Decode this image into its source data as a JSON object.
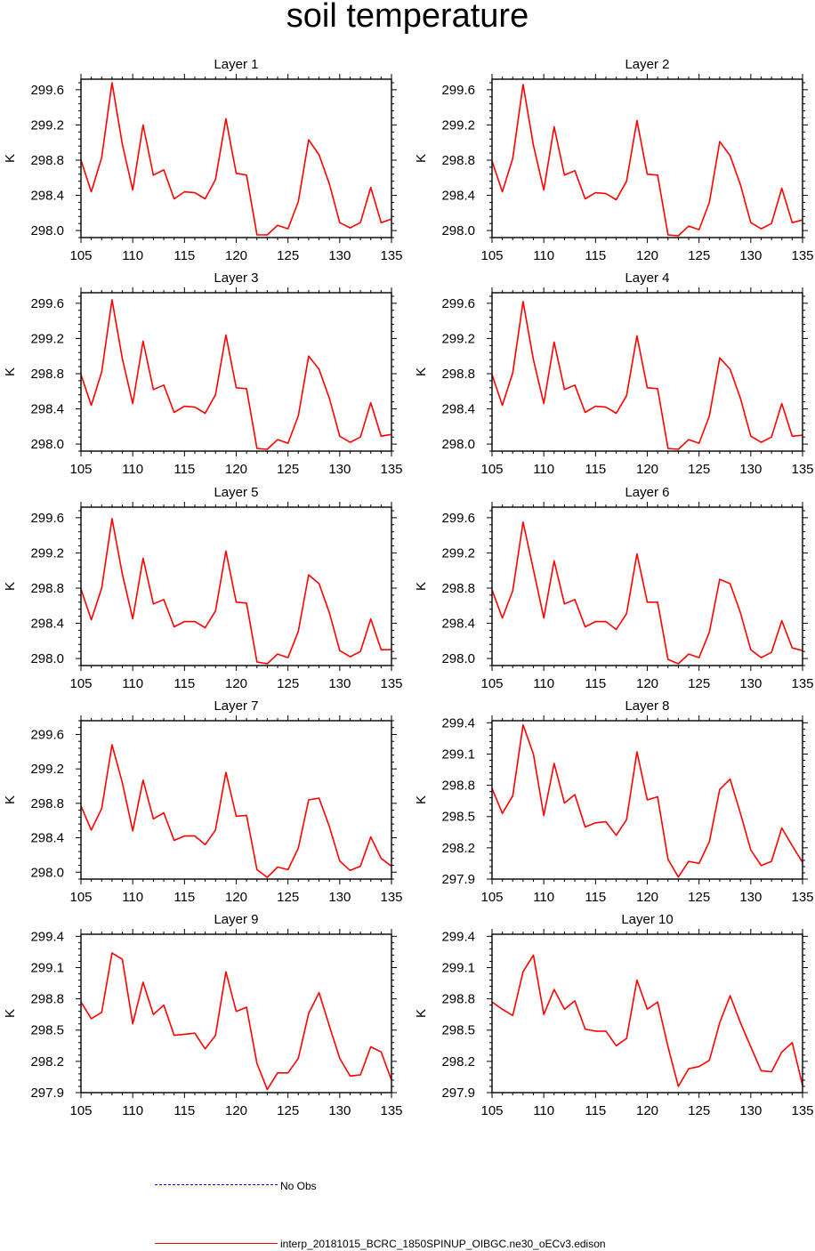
{
  "title": "soil temperature",
  "colors": {
    "model": "#ff0000",
    "obs": "#0000ff",
    "axis": "#000000"
  },
  "legend": {
    "obs_label": "No Obs",
    "model_label": "interp_20181015_BCRC_1850SPINUP_OIBGC.ne30_oECv3.edison"
  },
  "chart_data": [
    {
      "type": "line",
      "title": "Layer 1",
      "ylabel": "K",
      "xlim": [
        105,
        135
      ],
      "ylim": [
        297.92,
        299.72
      ],
      "xticks": [
        105,
        110,
        115,
        120,
        125,
        130,
        135
      ],
      "yticks": [
        "298.0",
        "298.4",
        "298.8",
        "299.2",
        "299.6"
      ],
      "x": [
        105,
        106,
        107,
        108,
        109,
        110,
        111,
        112,
        113,
        114,
        115,
        116,
        117,
        118,
        119,
        120,
        121,
        122,
        123,
        124,
        125,
        126,
        127,
        128,
        129,
        130,
        131,
        132,
        133,
        134,
        135
      ],
      "series": [
        {
          "name": "interp_20181015_BCRC_1850SPINUP_OIBGC.ne30_oECv3.edison",
          "values": [
            298.8,
            298.44,
            298.83,
            299.68,
            298.98,
            298.46,
            299.2,
            298.63,
            298.69,
            298.36,
            298.44,
            298.43,
            298.36,
            298.58,
            299.27,
            298.65,
            298.63,
            297.95,
            297.95,
            298.06,
            298.02,
            298.33,
            299.03,
            298.86,
            298.53,
            298.09,
            298.03,
            298.09,
            298.49,
            298.09,
            298.13
          ]
        }
      ]
    },
    {
      "type": "line",
      "title": "Layer 2",
      "ylabel": "K",
      "xlim": [
        105,
        135
      ],
      "ylim": [
        297.92,
        299.72
      ],
      "xticks": [
        105,
        110,
        115,
        120,
        125,
        130,
        135
      ],
      "yticks": [
        "298.0",
        "298.4",
        "298.8",
        "299.2",
        "299.6"
      ],
      "x": [
        105,
        106,
        107,
        108,
        109,
        110,
        111,
        112,
        113,
        114,
        115,
        116,
        117,
        118,
        119,
        120,
        121,
        122,
        123,
        124,
        125,
        126,
        127,
        128,
        129,
        130,
        131,
        132,
        133,
        134,
        135
      ],
      "series": [
        {
          "name": "interp_20181015_BCRC_1850SPINUP_OIBGC.ne30_oECv3.edison",
          "values": [
            298.79,
            298.44,
            298.82,
            299.66,
            298.97,
            298.46,
            299.18,
            298.63,
            298.68,
            298.36,
            298.43,
            298.42,
            298.35,
            298.56,
            299.25,
            298.64,
            298.63,
            297.95,
            297.94,
            298.05,
            298.01,
            298.32,
            299.01,
            298.85,
            298.52,
            298.09,
            298.02,
            298.08,
            298.48,
            298.09,
            298.12
          ]
        }
      ]
    },
    {
      "type": "line",
      "title": "Layer 3",
      "ylabel": "K",
      "xlim": [
        105,
        135
      ],
      "ylim": [
        297.92,
        299.72
      ],
      "xticks": [
        105,
        110,
        115,
        120,
        125,
        130,
        135
      ],
      "yticks": [
        "298.0",
        "298.4",
        "298.8",
        "299.2",
        "299.6"
      ],
      "x": [
        105,
        106,
        107,
        108,
        109,
        110,
        111,
        112,
        113,
        114,
        115,
        116,
        117,
        118,
        119,
        120,
        121,
        122,
        123,
        124,
        125,
        126,
        127,
        128,
        129,
        130,
        131,
        132,
        133,
        134,
        135
      ],
      "series": [
        {
          "name": "interp_20181015_BCRC_1850SPINUP_OIBGC.ne30_oECv3.edison",
          "values": [
            298.79,
            298.44,
            298.82,
            299.64,
            298.97,
            298.46,
            299.17,
            298.62,
            298.67,
            298.36,
            298.43,
            298.42,
            298.35,
            298.56,
            299.24,
            298.64,
            298.63,
            297.95,
            297.94,
            298.05,
            298.01,
            298.32,
            299.0,
            298.85,
            298.52,
            298.09,
            298.02,
            298.08,
            298.47,
            298.09,
            298.11
          ]
        }
      ]
    },
    {
      "type": "line",
      "title": "Layer 4",
      "ylabel": "K",
      "xlim": [
        105,
        135
      ],
      "ylim": [
        297.92,
        299.72
      ],
      "xticks": [
        105,
        110,
        115,
        120,
        125,
        130,
        135
      ],
      "yticks": [
        "298.0",
        "298.4",
        "298.8",
        "299.2",
        "299.6"
      ],
      "x": [
        105,
        106,
        107,
        108,
        109,
        110,
        111,
        112,
        113,
        114,
        115,
        116,
        117,
        118,
        119,
        120,
        121,
        122,
        123,
        124,
        125,
        126,
        127,
        128,
        129,
        130,
        131,
        132,
        133,
        134,
        135
      ],
      "series": [
        {
          "name": "interp_20181015_BCRC_1850SPINUP_OIBGC.ne30_oECv3.edison",
          "values": [
            298.79,
            298.44,
            298.81,
            299.62,
            298.96,
            298.46,
            299.16,
            298.62,
            298.67,
            298.36,
            298.43,
            298.42,
            298.35,
            298.55,
            299.23,
            298.64,
            298.63,
            297.95,
            297.94,
            298.05,
            298.01,
            298.32,
            298.98,
            298.85,
            298.52,
            298.09,
            298.02,
            298.08,
            298.46,
            298.09,
            298.1
          ]
        }
      ]
    },
    {
      "type": "line",
      "title": "Layer 5",
      "ylabel": "K",
      "xlim": [
        105,
        135
      ],
      "ylim": [
        297.92,
        299.72
      ],
      "xticks": [
        105,
        110,
        115,
        120,
        125,
        130,
        135
      ],
      "yticks": [
        "298.0",
        "298.4",
        "298.8",
        "299.2",
        "299.6"
      ],
      "x": [
        105,
        106,
        107,
        108,
        109,
        110,
        111,
        112,
        113,
        114,
        115,
        116,
        117,
        118,
        119,
        120,
        121,
        122,
        123,
        124,
        125,
        126,
        127,
        128,
        129,
        130,
        131,
        132,
        133,
        134,
        135
      ],
      "series": [
        {
          "name": "interp_20181015_BCRC_1850SPINUP_OIBGC.ne30_oECv3.edison",
          "values": [
            298.79,
            298.44,
            298.8,
            299.59,
            298.96,
            298.45,
            299.14,
            298.62,
            298.67,
            298.36,
            298.42,
            298.42,
            298.35,
            298.54,
            299.22,
            298.64,
            298.63,
            297.96,
            297.94,
            298.05,
            298.01,
            298.31,
            298.95,
            298.85,
            298.52,
            298.09,
            298.02,
            298.08,
            298.45,
            298.1,
            298.1
          ]
        }
      ]
    },
    {
      "type": "line",
      "title": "Layer 6",
      "ylabel": "K",
      "xlim": [
        105,
        135
      ],
      "ylim": [
        297.92,
        299.72
      ],
      "xticks": [
        105,
        110,
        115,
        120,
        125,
        130,
        135
      ],
      "yticks": [
        "298.0",
        "298.4",
        "298.8",
        "299.2",
        "299.6"
      ],
      "x": [
        105,
        106,
        107,
        108,
        109,
        110,
        111,
        112,
        113,
        114,
        115,
        116,
        117,
        118,
        119,
        120,
        121,
        122,
        123,
        124,
        125,
        126,
        127,
        128,
        129,
        130,
        131,
        132,
        133,
        134,
        135
      ],
      "series": [
        {
          "name": "interp_20181015_BCRC_1850SPINUP_OIBGC.ne30_oECv3.edison",
          "values": [
            298.78,
            298.46,
            298.77,
            299.55,
            299.01,
            298.46,
            299.11,
            298.62,
            298.67,
            298.36,
            298.42,
            298.42,
            298.33,
            298.51,
            299.19,
            298.64,
            298.64,
            297.99,
            297.94,
            298.05,
            298.01,
            298.3,
            298.9,
            298.85,
            298.52,
            298.1,
            298.01,
            298.07,
            298.43,
            298.12,
            298.09
          ]
        }
      ]
    },
    {
      "type": "line",
      "title": "Layer 7",
      "ylabel": "K",
      "xlim": [
        105,
        135
      ],
      "ylim": [
        297.92,
        299.76
      ],
      "xticks": [
        105,
        110,
        115,
        120,
        125,
        130,
        135
      ],
      "yticks": [
        "298.0",
        "298.4",
        "298.8",
        "299.2",
        "299.6"
      ],
      "x": [
        105,
        106,
        107,
        108,
        109,
        110,
        111,
        112,
        113,
        114,
        115,
        116,
        117,
        118,
        119,
        120,
        121,
        122,
        123,
        124,
        125,
        126,
        127,
        128,
        129,
        130,
        131,
        132,
        133,
        134,
        135
      ],
      "series": [
        {
          "name": "interp_20181015_BCRC_1850SPINUP_OIBGC.ne30_oECv3.edison",
          "values": [
            298.77,
            298.49,
            298.74,
            299.48,
            299.04,
            298.48,
            299.07,
            298.62,
            298.69,
            298.37,
            298.42,
            298.42,
            298.32,
            298.49,
            299.16,
            298.65,
            298.66,
            298.03,
            297.94,
            298.06,
            298.03,
            298.28,
            298.84,
            298.86,
            298.53,
            298.13,
            298.02,
            298.07,
            298.41,
            298.16,
            298.07
          ]
        }
      ]
    },
    {
      "type": "line",
      "title": "Layer 8",
      "ylabel": "K",
      "xlim": [
        105,
        135
      ],
      "ylim": [
        297.9,
        299.42
      ],
      "xticks": [
        105,
        110,
        115,
        120,
        125,
        130,
        135
      ],
      "yticks": [
        "297.9",
        "298.2",
        "298.5",
        "298.8",
        "299.1",
        "299.4"
      ],
      "x": [
        105,
        106,
        107,
        108,
        109,
        110,
        111,
        112,
        113,
        114,
        115,
        116,
        117,
        118,
        119,
        120,
        121,
        122,
        123,
        124,
        125,
        126,
        127,
        128,
        129,
        130,
        131,
        132,
        133,
        134,
        135
      ],
      "series": [
        {
          "name": "interp_20181015_BCRC_1850SPINUP_OIBGC.ne30_oECv3.edison",
          "values": [
            298.77,
            298.53,
            298.7,
            299.38,
            299.1,
            298.51,
            299.01,
            298.63,
            298.71,
            298.4,
            298.44,
            298.45,
            298.32,
            298.47,
            299.12,
            298.66,
            298.69,
            298.09,
            297.92,
            298.07,
            298.05,
            298.26,
            298.76,
            298.86,
            298.53,
            298.18,
            298.03,
            298.07,
            298.39,
            298.22,
            298.06
          ]
        }
      ]
    },
    {
      "type": "line",
      "title": "Layer 9",
      "ylabel": "K",
      "xlim": [
        105,
        135
      ],
      "ylim": [
        297.9,
        299.42
      ],
      "xticks": [
        105,
        110,
        115,
        120,
        125,
        130,
        135
      ],
      "yticks": [
        "297.9",
        "298.2",
        "298.5",
        "298.8",
        "299.1",
        "299.4"
      ],
      "x": [
        105,
        106,
        107,
        108,
        109,
        110,
        111,
        112,
        113,
        114,
        115,
        116,
        117,
        118,
        119,
        120,
        121,
        122,
        123,
        124,
        125,
        126,
        127,
        128,
        129,
        130,
        131,
        132,
        133,
        134,
        135
      ],
      "series": [
        {
          "name": "interp_20181015_BCRC_1850SPINUP_OIBGC.ne30_oECv3.edison",
          "values": [
            298.77,
            298.61,
            298.67,
            299.24,
            299.18,
            298.56,
            298.96,
            298.65,
            298.74,
            298.45,
            298.46,
            298.47,
            298.32,
            298.45,
            299.06,
            298.68,
            298.72,
            298.18,
            297.93,
            298.09,
            298.09,
            298.23,
            298.66,
            298.86,
            298.54,
            298.23,
            298.06,
            298.07,
            298.34,
            298.29,
            298.02
          ]
        }
      ]
    },
    {
      "type": "line",
      "title": "Layer 10",
      "ylabel": "K",
      "xlim": [
        105,
        135
      ],
      "ylim": [
        297.9,
        299.42
      ],
      "xticks": [
        105,
        110,
        115,
        120,
        125,
        130,
        135
      ],
      "yticks": [
        "297.9",
        "298.2",
        "298.5",
        "298.8",
        "299.1",
        "299.4"
      ],
      "x": [
        105,
        106,
        107,
        108,
        109,
        110,
        111,
        112,
        113,
        114,
        115,
        116,
        117,
        118,
        119,
        120,
        121,
        122,
        123,
        124,
        125,
        126,
        127,
        128,
        129,
        130,
        131,
        132,
        133,
        134,
        135
      ],
      "series": [
        {
          "name": "interp_20181015_BCRC_1850SPINUP_OIBGC.ne30_oECv3.edison",
          "values": [
            298.77,
            298.7,
            298.64,
            299.06,
            299.22,
            298.65,
            298.89,
            298.7,
            298.78,
            298.51,
            298.49,
            298.49,
            298.35,
            298.42,
            298.98,
            298.7,
            298.77,
            298.34,
            297.96,
            298.13,
            298.15,
            298.21,
            298.57,
            298.83,
            298.57,
            298.34,
            298.11,
            298.1,
            298.29,
            298.38,
            297.97
          ]
        }
      ]
    }
  ]
}
